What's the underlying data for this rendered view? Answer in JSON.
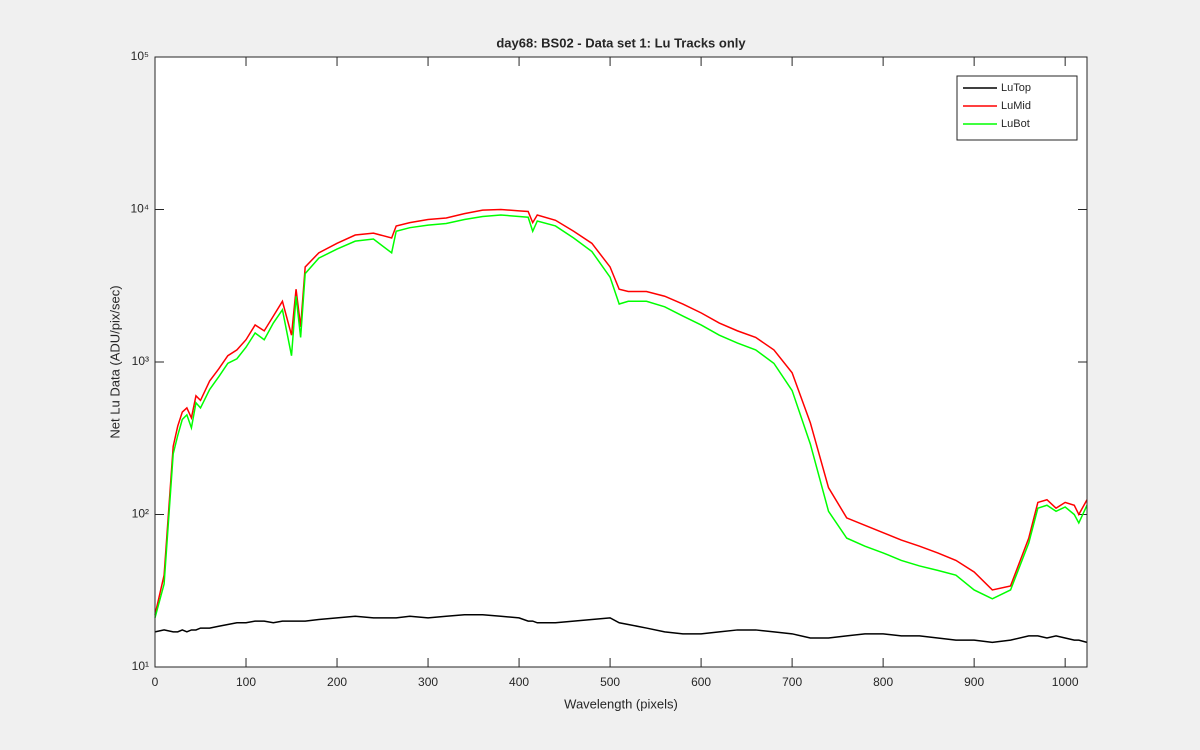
{
  "chart_data": {
    "type": "line",
    "title": "day68: BS02 - Data set 1: Lu Tracks only",
    "xlabel": "Wavelength (pixels)",
    "ylabel": "Net Lu Data (ADU/pix/sec)",
    "yscale": "log",
    "legend": "upper right",
    "x": [
      0,
      10,
      20,
      25,
      30,
      35,
      40,
      45,
      50,
      60,
      70,
      80,
      90,
      100,
      110,
      120,
      130,
      140,
      150,
      155,
      160,
      165,
      180,
      200,
      220,
      240,
      260,
      265,
      280,
      300,
      320,
      340,
      360,
      380,
      400,
      410,
      415,
      420,
      440,
      460,
      480,
      500,
      510,
      520,
      540,
      560,
      580,
      600,
      620,
      640,
      660,
      680,
      700,
      720,
      740,
      760,
      780,
      800,
      820,
      840,
      860,
      880,
      900,
      920,
      940,
      960,
      970,
      980,
      990,
      1000,
      1010,
      1015,
      1024
    ],
    "series": [
      {
        "name": "LuTop",
        "color": "#000000",
        "values": [
          17,
          17.5,
          17,
          17,
          17.5,
          17,
          17.5,
          17.5,
          18,
          18,
          18.5,
          19,
          19.5,
          19.5,
          20,
          20,
          19.5,
          20,
          20,
          20,
          20,
          20,
          20.5,
          21,
          21.5,
          21,
          21,
          21,
          21.5,
          21,
          21.5,
          22,
          22,
          21.5,
          21,
          20,
          20,
          19.5,
          19.5,
          20,
          20.5,
          21,
          19.5,
          19,
          18,
          17,
          16.5,
          16.5,
          17,
          17.5,
          17.5,
          17,
          16.5,
          15.5,
          15.5,
          16,
          16.5,
          16.5,
          16,
          16,
          15.5,
          15,
          15,
          14.5,
          15,
          16,
          16,
          15.5,
          16,
          15.5,
          15,
          15,
          14.5
        ]
      },
      {
        "name": "LuMid",
        "color": "#ff0000",
        "values": [
          22,
          40,
          280,
          380,
          470,
          500,
          430,
          600,
          560,
          750,
          900,
          1100,
          1200,
          1400,
          1750,
          1600,
          2000,
          2500,
          1500,
          3000,
          1700,
          4200,
          5200,
          6000,
          6800,
          7000,
          6500,
          7800,
          8200,
          8600,
          8800,
          9400,
          9900,
          10000,
          9800,
          9700,
          8200,
          9200,
          8500,
          7200,
          6000,
          4200,
          3000,
          2900,
          2900,
          2700,
          2400,
          2100,
          1800,
          1600,
          1450,
          1200,
          850,
          400,
          150,
          95,
          85,
          76,
          68,
          62,
          56,
          50,
          42,
          32,
          34,
          70,
          120,
          125,
          110,
          120,
          115,
          100,
          125
        ]
      },
      {
        "name": "LuBot",
        "color": "#00ff00",
        "values": [
          21,
          35,
          250,
          330,
          420,
          450,
          370,
          540,
          500,
          660,
          800,
          980,
          1050,
          1250,
          1550,
          1400,
          1800,
          2200,
          1100,
          2700,
          1450,
          3800,
          4800,
          5500,
          6200,
          6400,
          5200,
          7200,
          7600,
          7900,
          8100,
          8600,
          9000,
          9200,
          9000,
          8900,
          7200,
          8400,
          7800,
          6500,
          5300,
          3600,
          2400,
          2500,
          2500,
          2300,
          2000,
          1750,
          1500,
          1330,
          1200,
          980,
          650,
          290,
          105,
          70,
          62,
          56,
          50,
          46,
          43,
          40,
          32,
          28,
          32,
          65,
          110,
          115,
          105,
          112,
          100,
          88,
          115
        ]
      }
    ],
    "xlim": [
      0,
      1024
    ],
    "xticks": [
      0,
      100,
      200,
      300,
      400,
      500,
      600,
      700,
      800,
      900,
      1000
    ],
    "ylim": [
      10,
      100000
    ],
    "yticks": [
      {
        "value": 10,
        "label": "10¹"
      },
      {
        "value": 100,
        "label": "10²"
      },
      {
        "value": 1000,
        "label": "10³"
      },
      {
        "value": 10000,
        "label": "10⁴"
      },
      {
        "value": 100000,
        "label": "10⁵"
      }
    ]
  }
}
